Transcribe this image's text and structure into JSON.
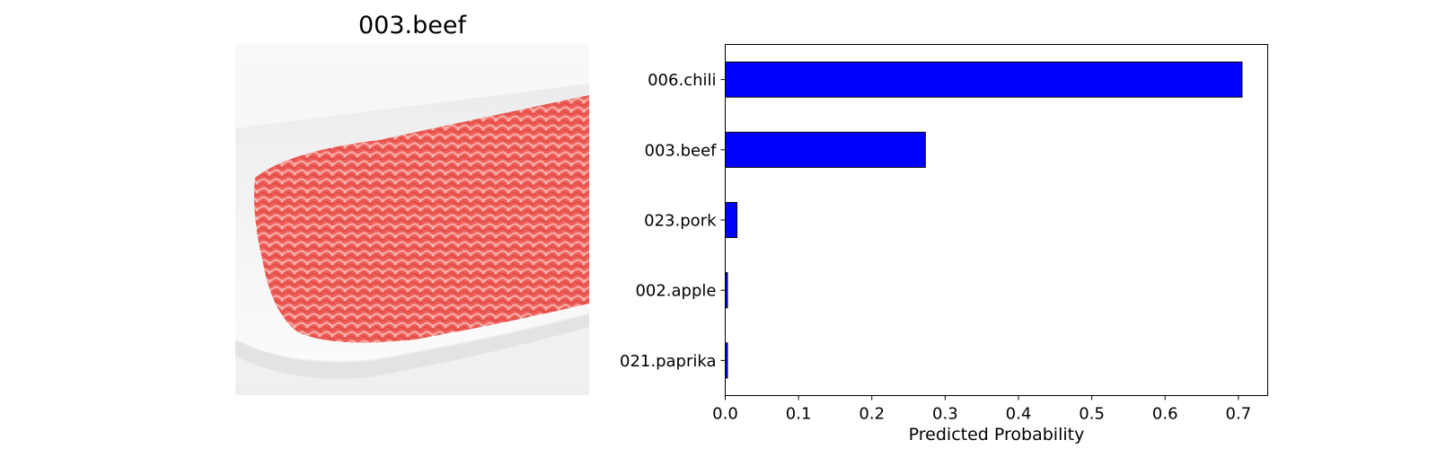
{
  "image_panel": {
    "title": "003.beef",
    "subject": "raw ground beef in white foam tray",
    "colors": {
      "meat": "#f0625e",
      "meat_light": "#f7b3ad",
      "tray": "#f3f3f3",
      "background": "#f6f6f6"
    }
  },
  "chart_data": {
    "type": "bar",
    "orientation": "horizontal",
    "categories": [
      "006.chili",
      "003.beef",
      "023.pork",
      "002.apple",
      "021.paprika"
    ],
    "values": [
      0.705,
      0.273,
      0.016,
      0.003,
      0.003
    ],
    "xlabel": "Predicted Probability",
    "ylabel": "",
    "xlim": [
      0,
      0.74
    ],
    "xticks": [
      0.0,
      0.1,
      0.2,
      0.3,
      0.4,
      0.5,
      0.6,
      0.7
    ],
    "xtick_labels": [
      "0.0",
      "0.1",
      "0.2",
      "0.3",
      "0.4",
      "0.5",
      "0.6",
      "0.7"
    ],
    "grid": false,
    "bar_color": "#0000ff",
    "edge_color": "#000000"
  }
}
